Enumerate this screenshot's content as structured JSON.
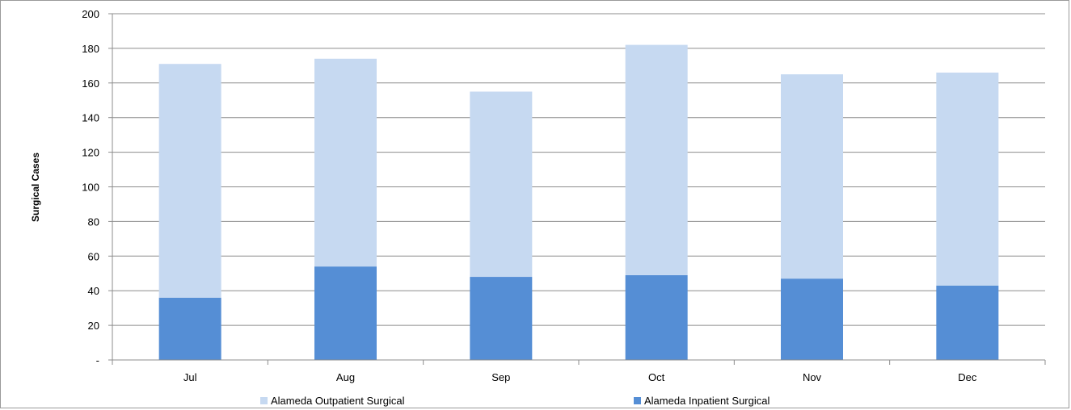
{
  "chart_data": {
    "type": "bar",
    "stacked": true,
    "title": "",
    "xlabel": "",
    "ylabel": "Surgical Cases",
    "categories": [
      "Jul",
      "Aug",
      "Sep",
      "Oct",
      "Nov",
      "Dec"
    ],
    "ylim": [
      0,
      200
    ],
    "yticks": [
      0,
      20,
      40,
      60,
      80,
      100,
      120,
      140,
      160,
      180,
      200
    ],
    "ytick_labels": [
      "-",
      "20",
      "40",
      "60",
      "80",
      "100",
      "120",
      "140",
      "160",
      "180",
      "200"
    ],
    "grid": true,
    "legend_position": "bottom",
    "series": [
      {
        "name": "Alameda Inpatient Surgical",
        "values": [
          36,
          54,
          48,
          49,
          47,
          43
        ],
        "color": "#558ed5"
      },
      {
        "name": "Alameda Outpatient Surgical",
        "values": [
          135,
          120,
          107,
          133,
          118,
          123
        ],
        "color": "#c6d9f1"
      }
    ],
    "legend": [
      {
        "name": "Alameda Outpatient Surgical",
        "color": "#c6d9f1"
      },
      {
        "name": "Alameda Inpatient Surgical",
        "color": "#558ed5"
      }
    ]
  }
}
